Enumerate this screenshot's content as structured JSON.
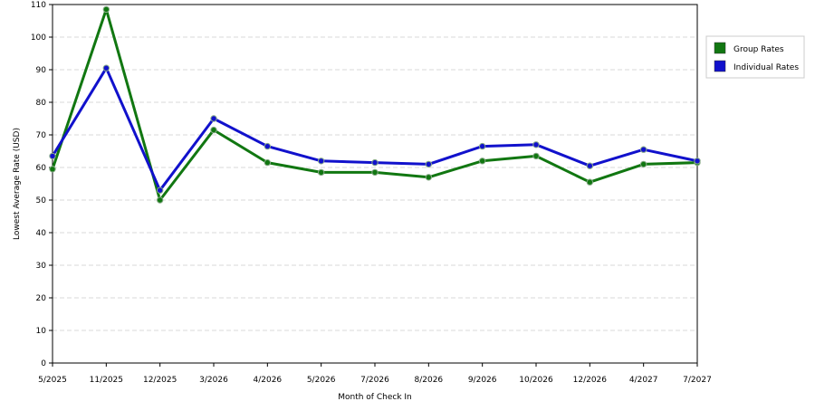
{
  "chart_data": {
    "type": "line",
    "title": "",
    "xlabel": "Month of Check In",
    "ylabel": "Lowest Average Rate (USD)",
    "categories": [
      "5/2025",
      "11/2025",
      "12/2025",
      "3/2026",
      "4/2026",
      "5/2026",
      "7/2026",
      "8/2026",
      "9/2026",
      "10/2026",
      "12/2026",
      "4/2027",
      "7/2027"
    ],
    "ylim": [
      0,
      110
    ],
    "yticks": [
      0,
      10,
      20,
      30,
      40,
      50,
      60,
      70,
      80,
      90,
      100,
      110
    ],
    "grid": true,
    "legend_position": "top-right",
    "series": [
      {
        "name": "Group Rates",
        "color": "#117711",
        "values": [
          59.5,
          108.5,
          50,
          71.5,
          61.5,
          58.5,
          58.5,
          57,
          62,
          63.5,
          55.5,
          61,
          61.5
        ]
      },
      {
        "name": "Individual Rates",
        "color": "#1111cc",
        "values": [
          63.5,
          90.5,
          53,
          75,
          66.5,
          62,
          61.5,
          61,
          66.5,
          67,
          60.5,
          65.5,
          62
        ]
      }
    ]
  }
}
